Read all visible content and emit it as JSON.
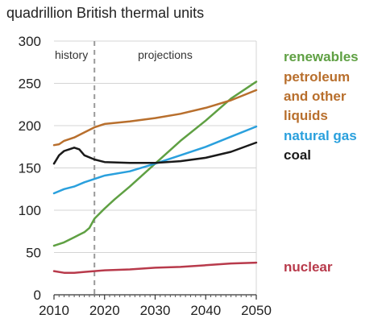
{
  "chart_data": {
    "type": "line",
    "ylabel": "quadrillion British thermal units",
    "xlim": [
      2010,
      2050
    ],
    "ylim": [
      0,
      300
    ],
    "xticks": [
      2010,
      2020,
      2030,
      2040,
      2050
    ],
    "yticks": [
      0,
      50,
      100,
      150,
      200,
      250,
      300
    ],
    "grid": true,
    "divider_x": 2018,
    "annotations": [
      "history",
      "projections"
    ],
    "legend_placement": "right",
    "series": [
      {
        "name": "renewables",
        "legend_lines": [
          "renewables"
        ],
        "color": "#5fa043",
        "x": [
          2010,
          2012,
          2014,
          2015,
          2016,
          2017,
          2018,
          2020,
          2022,
          2025,
          2030,
          2035,
          2040,
          2045,
          2050
        ],
        "y": [
          58,
          62,
          68,
          71,
          74,
          79,
          90,
          102,
          113,
          128,
          155,
          182,
          206,
          232,
          252
        ]
      },
      {
        "name": "petroleum and other liquids",
        "legend_lines": [
          "petroleum",
          "and other",
          "liquids"
        ],
        "color": "#b86f2d",
        "x": [
          2010,
          2011,
          2012,
          2014,
          2016,
          2018,
          2020,
          2025,
          2030,
          2035,
          2040,
          2045,
          2050
        ],
        "y": [
          177,
          178,
          182,
          186,
          192,
          198,
          202,
          205,
          209,
          214,
          221,
          230,
          242
        ]
      },
      {
        "name": "natural gas",
        "legend_lines": [
          "natural gas"
        ],
        "color": "#2aa0dd",
        "x": [
          2010,
          2012,
          2014,
          2016,
          2018,
          2020,
          2025,
          2030,
          2035,
          2040,
          2045,
          2050
        ],
        "y": [
          120,
          125,
          128,
          133,
          137,
          141,
          146,
          155,
          165,
          175,
          187,
          199
        ]
      },
      {
        "name": "coal",
        "legend_lines": [
          "coal"
        ],
        "color": "#1a1a1a",
        "x": [
          2010,
          2011,
          2012,
          2013,
          2014,
          2015,
          2016,
          2018,
          2020,
          2025,
          2030,
          2035,
          2040,
          2045,
          2050
        ],
        "y": [
          155,
          165,
          170,
          172,
          174,
          172,
          165,
          160,
          157,
          156,
          156,
          158,
          162,
          169,
          180
        ]
      },
      {
        "name": "nuclear",
        "legend_lines": [
          "nuclear"
        ],
        "color": "#b83a4b",
        "x": [
          2010,
          2012,
          2014,
          2016,
          2018,
          2020,
          2025,
          2030,
          2035,
          2040,
          2045,
          2050
        ],
        "y": [
          28,
          26,
          26,
          27,
          28,
          29,
          30,
          32,
          33,
          35,
          37,
          38
        ]
      }
    ]
  }
}
